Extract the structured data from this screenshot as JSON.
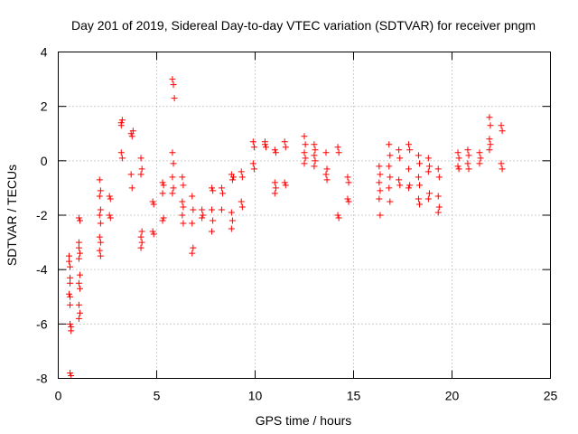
{
  "chart_data": {
    "type": "scatter",
    "title": "Day 201 of 2019, Sidereal Day-to-day VTEC variation (SDTVAR) for receiver pngm",
    "xlabel": "GPS time / hours",
    "ylabel": "SDTVAR / TECUs",
    "xlim": [
      0,
      25
    ],
    "ylim": [
      -8,
      4
    ],
    "xticks": [
      0,
      5,
      10,
      15,
      20,
      25
    ],
    "yticks": [
      -8,
      -6,
      -4,
      -2,
      0,
      2,
      4
    ],
    "grid": true,
    "marker": "plus",
    "color": "#ff0000",
    "series": [
      {
        "name": "SDTVAR",
        "points": [
          [
            0.55,
            -3.5
          ],
          [
            0.55,
            -3.7
          ],
          [
            0.6,
            -3.9
          ],
          [
            0.6,
            -4.3
          ],
          [
            0.6,
            -4.5
          ],
          [
            0.55,
            -4.9
          ],
          [
            0.6,
            -5.0
          ],
          [
            0.6,
            -5.3
          ],
          [
            0.6,
            -6.0
          ],
          [
            0.65,
            -6.1
          ],
          [
            0.65,
            -6.25
          ],
          [
            0.6,
            -7.8
          ],
          [
            0.65,
            -7.9
          ],
          [
            1.05,
            -2.1
          ],
          [
            1.1,
            -2.2
          ],
          [
            1.05,
            -3.0
          ],
          [
            1.05,
            -3.2
          ],
          [
            1.1,
            -3.4
          ],
          [
            1.05,
            -3.6
          ],
          [
            1.1,
            -4.2
          ],
          [
            1.05,
            -4.5
          ],
          [
            1.1,
            -4.7
          ],
          [
            1.05,
            -5.3
          ],
          [
            1.1,
            -5.6
          ],
          [
            1.05,
            -5.8
          ],
          [
            2.1,
            -0.7
          ],
          [
            2.15,
            -1.1
          ],
          [
            2.1,
            -1.3
          ],
          [
            2.15,
            -1.8
          ],
          [
            2.1,
            -2.0
          ],
          [
            2.15,
            -2.3
          ],
          [
            2.1,
            -2.8
          ],
          [
            2.15,
            -3.0
          ],
          [
            2.1,
            -3.3
          ],
          [
            2.15,
            -3.5
          ],
          [
            2.6,
            -1.3
          ],
          [
            2.65,
            -1.4
          ],
          [
            2.6,
            -2.0
          ],
          [
            2.65,
            -2.1
          ],
          [
            3.2,
            1.3
          ],
          [
            3.25,
            1.5
          ],
          [
            3.2,
            1.4
          ],
          [
            3.2,
            0.3
          ],
          [
            3.25,
            0.1
          ],
          [
            3.7,
            1.0
          ],
          [
            3.75,
            0.9
          ],
          [
            3.8,
            1.1
          ],
          [
            3.7,
            -0.5
          ],
          [
            3.75,
            -1.0
          ],
          [
            4.2,
            0.1
          ],
          [
            4.25,
            -0.3
          ],
          [
            4.2,
            -0.5
          ],
          [
            4.25,
            -2.6
          ],
          [
            4.2,
            -2.8
          ],
          [
            4.25,
            -3.0
          ],
          [
            4.2,
            -3.2
          ],
          [
            4.8,
            -1.5
          ],
          [
            4.85,
            -1.6
          ],
          [
            4.8,
            -2.6
          ],
          [
            4.85,
            -2.7
          ],
          [
            5.3,
            -0.8
          ],
          [
            5.35,
            -0.9
          ],
          [
            5.3,
            -1.2
          ],
          [
            5.35,
            -2.1
          ],
          [
            5.3,
            -2.2
          ],
          [
            5.8,
            3.0
          ],
          [
            5.85,
            2.8
          ],
          [
            5.9,
            2.3
          ],
          [
            5.8,
            0.3
          ],
          [
            5.85,
            -0.1
          ],
          [
            5.8,
            -0.6
          ],
          [
            5.85,
            -1.0
          ],
          [
            5.8,
            -1.2
          ],
          [
            6.3,
            -0.6
          ],
          [
            6.35,
            -0.9
          ],
          [
            6.3,
            -1.5
          ],
          [
            6.35,
            -1.7
          ],
          [
            6.3,
            -2.0
          ],
          [
            6.35,
            -2.3
          ],
          [
            6.8,
            -1.3
          ],
          [
            6.85,
            -1.8
          ],
          [
            6.8,
            -2.3
          ],
          [
            6.85,
            -3.2
          ],
          [
            6.8,
            -3.4
          ],
          [
            7.3,
            -1.8
          ],
          [
            7.35,
            -2.0
          ],
          [
            7.3,
            -2.1
          ],
          [
            7.8,
            -1.0
          ],
          [
            7.85,
            -1.1
          ],
          [
            7.8,
            -1.8
          ],
          [
            7.85,
            -2.2
          ],
          [
            7.8,
            -2.6
          ],
          [
            8.3,
            -1.0
          ],
          [
            8.35,
            -1.2
          ],
          [
            8.3,
            -1.8
          ],
          [
            8.8,
            -0.5
          ],
          [
            8.85,
            -0.7
          ],
          [
            8.9,
            -0.6
          ],
          [
            8.8,
            -1.9
          ],
          [
            8.85,
            -2.2
          ],
          [
            8.8,
            -2.5
          ],
          [
            9.3,
            -0.4
          ],
          [
            9.35,
            -0.6
          ],
          [
            9.3,
            -1.5
          ],
          [
            9.35,
            -1.7
          ],
          [
            9.9,
            0.7
          ],
          [
            9.95,
            0.5
          ],
          [
            9.9,
            -0.1
          ],
          [
            9.95,
            -0.3
          ],
          [
            10.5,
            0.7
          ],
          [
            10.55,
            0.5
          ],
          [
            10.5,
            0.6
          ],
          [
            11.0,
            0.4
          ],
          [
            11.05,
            0.3
          ],
          [
            11.0,
            -0.8
          ],
          [
            11.05,
            -1.0
          ],
          [
            11.0,
            -1.2
          ],
          [
            11.5,
            0.7
          ],
          [
            11.55,
            0.5
          ],
          [
            11.5,
            -0.8
          ],
          [
            11.55,
            -0.9
          ],
          [
            12.5,
            0.9
          ],
          [
            12.55,
            0.6
          ],
          [
            12.5,
            0.3
          ],
          [
            12.55,
            0.1
          ],
          [
            12.5,
            -0.1
          ],
          [
            13.0,
            0.6
          ],
          [
            13.05,
            0.4
          ],
          [
            13.0,
            0.2
          ],
          [
            13.05,
            0.0
          ],
          [
            13.0,
            -0.2
          ],
          [
            13.6,
            0.3
          ],
          [
            13.65,
            -0.3
          ],
          [
            13.6,
            -0.5
          ],
          [
            13.65,
            -0.7
          ],
          [
            14.2,
            0.5
          ],
          [
            14.25,
            0.3
          ],
          [
            14.2,
            -2.0
          ],
          [
            14.25,
            -2.1
          ],
          [
            14.7,
            -0.6
          ],
          [
            14.75,
            -0.8
          ],
          [
            14.7,
            -1.4
          ],
          [
            14.75,
            -1.5
          ],
          [
            16.3,
            -0.2
          ],
          [
            16.35,
            -0.5
          ],
          [
            16.3,
            -0.8
          ],
          [
            16.35,
            -1.1
          ],
          [
            16.3,
            -1.4
          ],
          [
            16.35,
            -2.0
          ],
          [
            16.8,
            0.6
          ],
          [
            16.85,
            0.2
          ],
          [
            16.8,
            -0.2
          ],
          [
            16.85,
            -0.6
          ],
          [
            16.8,
            -1.0
          ],
          [
            16.85,
            -1.5
          ],
          [
            17.3,
            0.4
          ],
          [
            17.35,
            0.1
          ],
          [
            17.3,
            -0.7
          ],
          [
            17.35,
            -0.9
          ],
          [
            17.8,
            0.6
          ],
          [
            17.85,
            0.4
          ],
          [
            17.8,
            -0.3
          ],
          [
            17.85,
            -0.9
          ],
          [
            17.8,
            -1.0
          ],
          [
            18.3,
            0.2
          ],
          [
            18.35,
            -0.1
          ],
          [
            18.3,
            -0.6
          ],
          [
            18.35,
            -0.9
          ],
          [
            18.3,
            -1.4
          ],
          [
            18.35,
            -1.6
          ],
          [
            18.8,
            0.1
          ],
          [
            18.85,
            -0.2
          ],
          [
            18.8,
            -0.4
          ],
          [
            18.85,
            -1.2
          ],
          [
            18.8,
            -1.4
          ],
          [
            19.3,
            -0.3
          ],
          [
            19.35,
            -0.6
          ],
          [
            19.3,
            -1.3
          ],
          [
            19.35,
            -1.7
          ],
          [
            19.3,
            -1.9
          ],
          [
            20.3,
            0.3
          ],
          [
            20.35,
            0.1
          ],
          [
            20.3,
            -0.2
          ],
          [
            20.35,
            -0.3
          ],
          [
            20.8,
            0.4
          ],
          [
            20.85,
            0.2
          ],
          [
            20.8,
            -0.1
          ],
          [
            20.85,
            -0.3
          ],
          [
            21.4,
            0.3
          ],
          [
            21.45,
            0.1
          ],
          [
            21.4,
            -0.1
          ],
          [
            21.9,
            1.6
          ],
          [
            21.95,
            1.3
          ],
          [
            21.9,
            0.8
          ],
          [
            21.95,
            0.6
          ],
          [
            21.9,
            0.4
          ],
          [
            22.5,
            1.3
          ],
          [
            22.55,
            1.1
          ],
          [
            22.5,
            -0.1
          ],
          [
            22.55,
            -0.3
          ]
        ]
      }
    ]
  }
}
